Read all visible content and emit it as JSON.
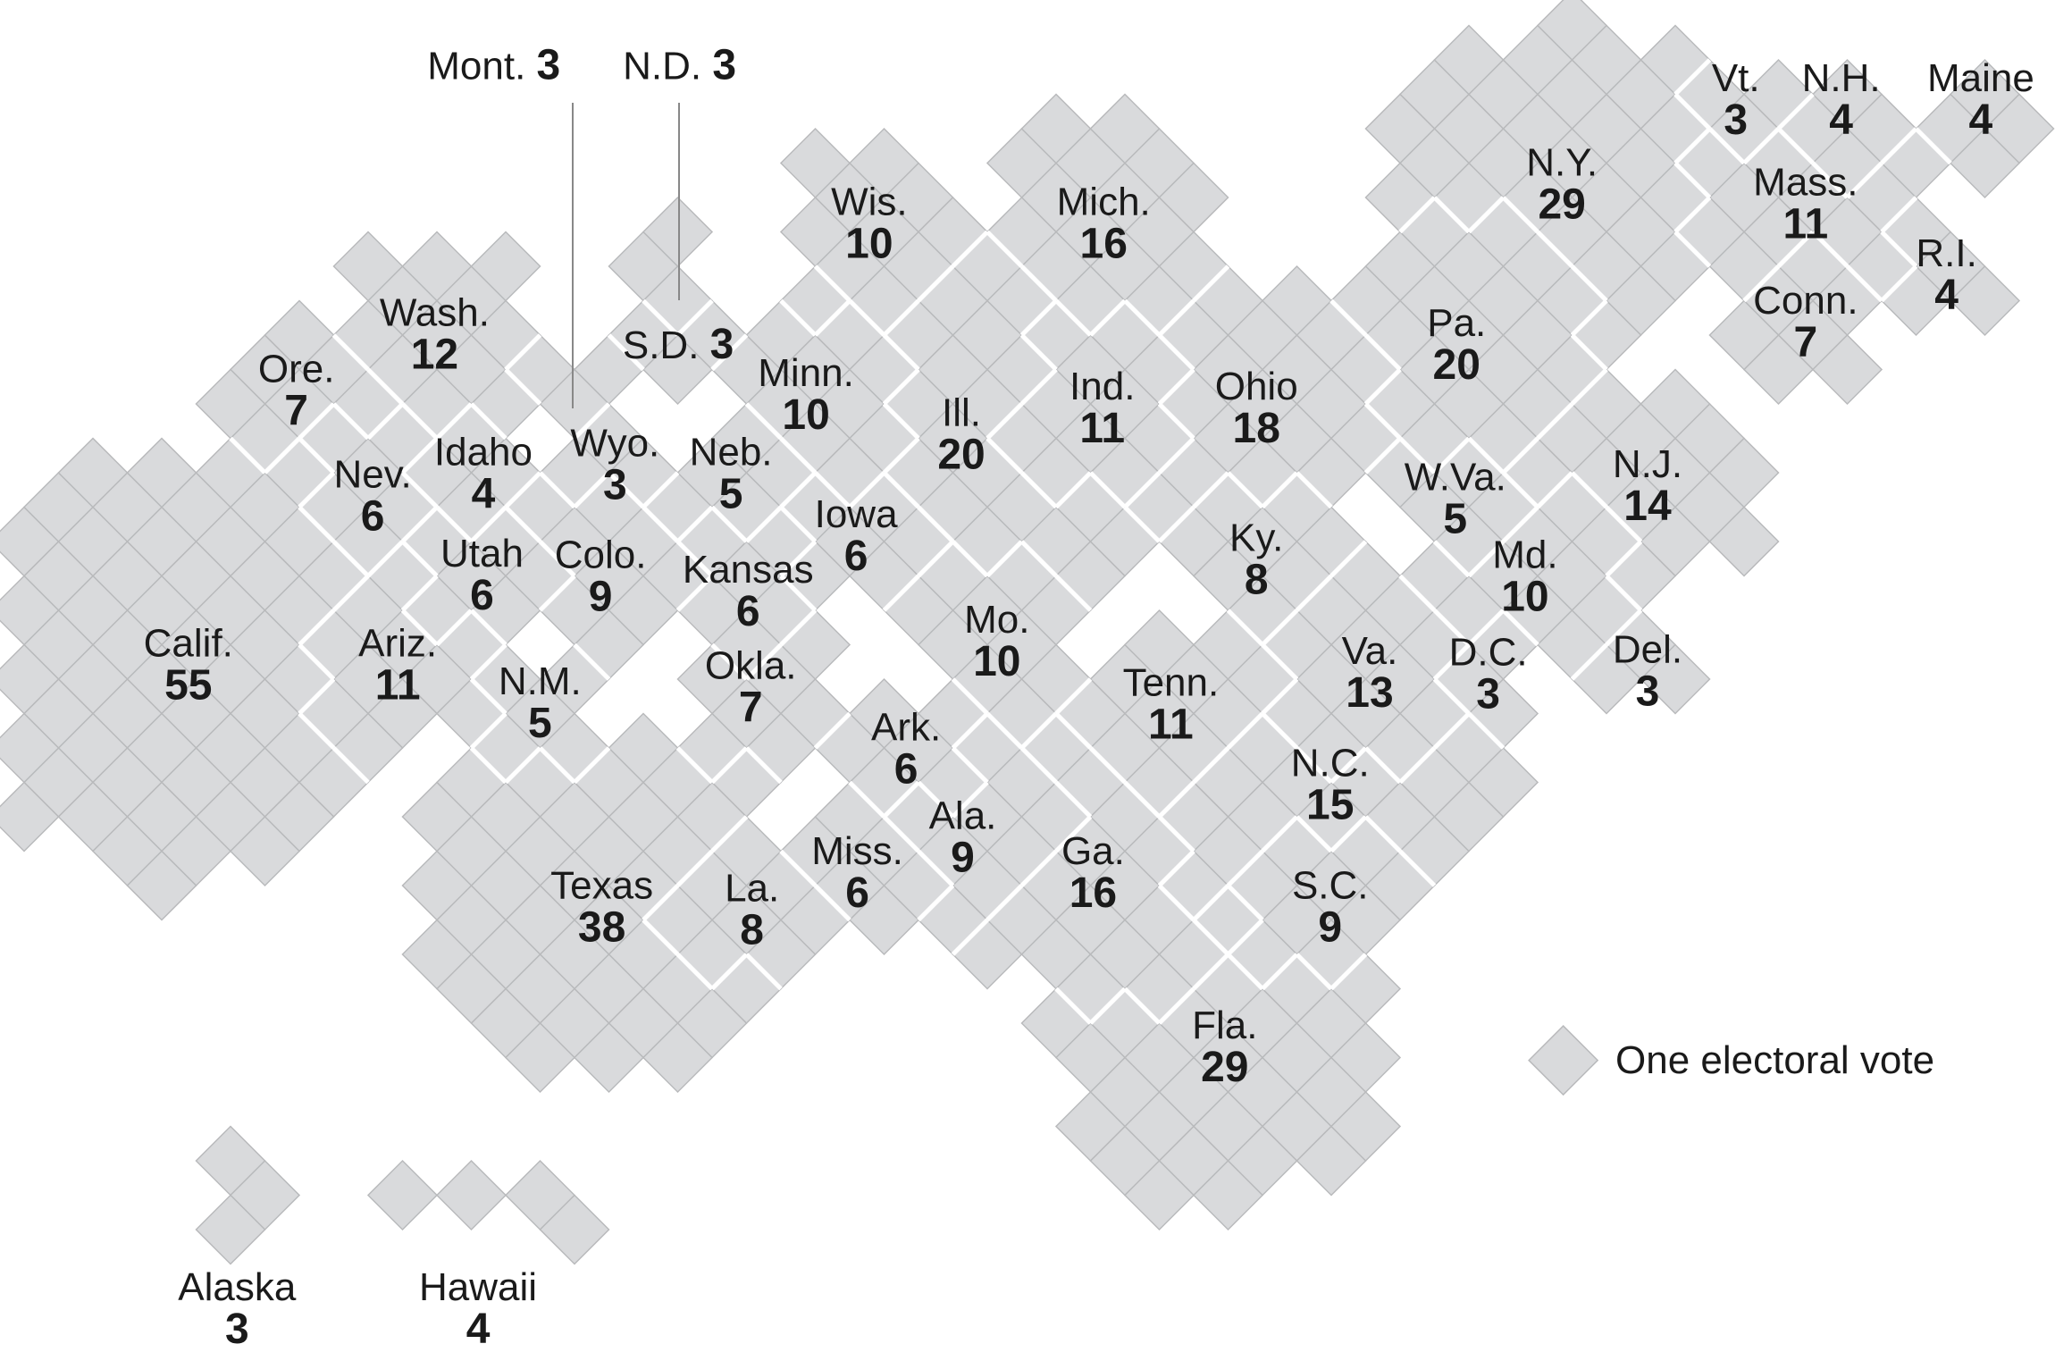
{
  "colors": {
    "tile": "#d9dadc",
    "tile_stroke": "#b9babc",
    "border": "#ffffff",
    "text": "#1a1a1a",
    "leader": "#888888"
  },
  "legend": {
    "label": "One electoral vote",
    "icon": "diamond-tile"
  },
  "states": [
    {
      "id": "wa",
      "name": "Wash.",
      "votes": 12
    },
    {
      "id": "or",
      "name": "Ore.",
      "votes": 7
    },
    {
      "id": "ca",
      "name": "Calif.",
      "votes": 55
    },
    {
      "id": "nv",
      "name": "Nev.",
      "votes": 6
    },
    {
      "id": "id",
      "name": "Idaho",
      "votes": 4
    },
    {
      "id": "ut",
      "name": "Utah",
      "votes": 6
    },
    {
      "id": "az",
      "name": "Ariz.",
      "votes": 11
    },
    {
      "id": "mt",
      "name": "Mont.",
      "votes": 3
    },
    {
      "id": "nd",
      "name": "N.D.",
      "votes": 3
    },
    {
      "id": "wy",
      "name": "Wyo.",
      "votes": 3
    },
    {
      "id": "sd",
      "name": "S.D.",
      "votes": 3
    },
    {
      "id": "ne",
      "name": "Neb.",
      "votes": 5
    },
    {
      "id": "co",
      "name": "Colo.",
      "votes": 9
    },
    {
      "id": "nm",
      "name": "N.M.",
      "votes": 5
    },
    {
      "id": "ks",
      "name": "Kansas",
      "votes": 6
    },
    {
      "id": "ok",
      "name": "Okla.",
      "votes": 7
    },
    {
      "id": "tx",
      "name": "Texas",
      "votes": 38
    },
    {
      "id": "mn",
      "name": "Minn.",
      "votes": 10
    },
    {
      "id": "ia",
      "name": "Iowa",
      "votes": 6
    },
    {
      "id": "mo",
      "name": "Mo.",
      "votes": 10
    },
    {
      "id": "ar",
      "name": "Ark.",
      "votes": 6
    },
    {
      "id": "la",
      "name": "La.",
      "votes": 8
    },
    {
      "id": "wi",
      "name": "Wis.",
      "votes": 10
    },
    {
      "id": "il",
      "name": "Ill.",
      "votes": 20
    },
    {
      "id": "mi",
      "name": "Mich.",
      "votes": 16
    },
    {
      "id": "in",
      "name": "Ind.",
      "votes": 11
    },
    {
      "id": "oh",
      "name": "Ohio",
      "votes": 18
    },
    {
      "id": "ky",
      "name": "Ky.",
      "votes": 8
    },
    {
      "id": "tn",
      "name": "Tenn.",
      "votes": 11
    },
    {
      "id": "ms",
      "name": "Miss.",
      "votes": 6
    },
    {
      "id": "al",
      "name": "Ala.",
      "votes": 9
    },
    {
      "id": "ga",
      "name": "Ga.",
      "votes": 16
    },
    {
      "id": "fl",
      "name": "Fla.",
      "votes": 29
    },
    {
      "id": "sc",
      "name": "S.C.",
      "votes": 9
    },
    {
      "id": "nc",
      "name": "N.C.",
      "votes": 15
    },
    {
      "id": "va",
      "name": "Va.",
      "votes": 13
    },
    {
      "id": "wv",
      "name": "W.Va.",
      "votes": 5
    },
    {
      "id": "md",
      "name": "Md.",
      "votes": 10
    },
    {
      "id": "dc",
      "name": "D.C.",
      "votes": 3
    },
    {
      "id": "de",
      "name": "Del.",
      "votes": 3
    },
    {
      "id": "nj",
      "name": "N.J.",
      "votes": 14
    },
    {
      "id": "pa",
      "name": "Pa.",
      "votes": 20
    },
    {
      "id": "ny",
      "name": "N.Y.",
      "votes": 29
    },
    {
      "id": "vt",
      "name": "Vt.",
      "votes": 3
    },
    {
      "id": "nh",
      "name": "N.H.",
      "votes": 4
    },
    {
      "id": "me",
      "name": "Maine",
      "votes": 4
    },
    {
      "id": "ma",
      "name": "Mass.",
      "votes": 11
    },
    {
      "id": "ri",
      "name": "R.I.",
      "votes": 4
    },
    {
      "id": "ct",
      "name": "Conn.",
      "votes": 7
    },
    {
      "id": "ak",
      "name": "Alaska",
      "votes": 3
    },
    {
      "id": "hi",
      "name": "Hawaii",
      "votes": 4
    }
  ]
}
